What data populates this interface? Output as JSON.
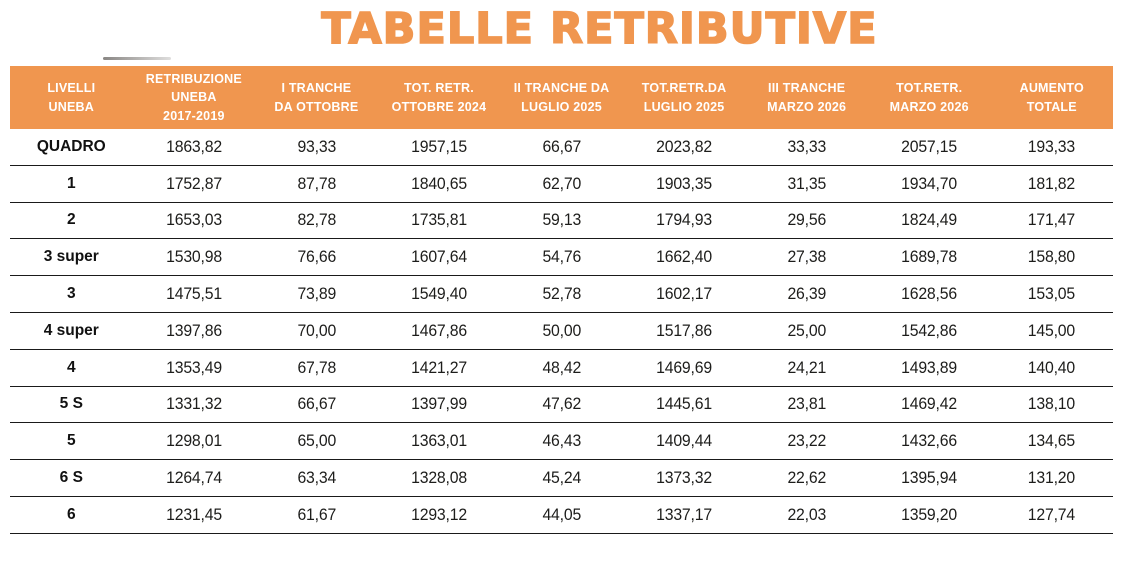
{
  "page": {
    "title": "TABELLE RETRIBUTIVE"
  },
  "theme": {
    "accent_orange": "#F0964F",
    "header_text_color": "#FFFFFF",
    "row_line_color": "#1A1A1A",
    "body_text_color": "#1D1D1B",
    "background": "#FFFFFF"
  },
  "table": {
    "columns": [
      {
        "id": "livelli-uneba",
        "label": "LIVELLI\nUNEBA"
      },
      {
        "id": "retribuzione-uneba-2017-2019",
        "label": "RETRIBUZIONE\nUNEBA\n2017-2019"
      },
      {
        "id": "i-tranche-da-ottobre",
        "label": "I TRANCHE\nDA OTTOBRE"
      },
      {
        "id": "tot-retr-ottobre-2024",
        "label": "TOT. RETR.\nOTTOBRE 2024"
      },
      {
        "id": "ii-tranche-da-luglio-2025",
        "label": "II TRANCHE DA\nLUGLIO 2025"
      },
      {
        "id": "tot-retr-da-luglio-2025",
        "label": "TOT.RETR.DA\nLUGLIO 2025"
      },
      {
        "id": "iii-tranche-marzo-2026",
        "label": "III TRANCHE\nMARZO 2026"
      },
      {
        "id": "tot-retr-marzo-2026",
        "label": "TOT.RETR.\nMARZO 2026"
      },
      {
        "id": "aumento-totale",
        "label": "AUMENTO\nTOTALE"
      }
    ],
    "rows": [
      {
        "level": "QUADRO",
        "values": [
          "1863,82",
          "93,33",
          "1957,15",
          "66,67",
          "2023,82",
          "33,33",
          "2057,15",
          "193,33"
        ]
      },
      {
        "level": "1",
        "values": [
          "1752,87",
          "87,78",
          "1840,65",
          "62,70",
          "1903,35",
          "31,35",
          "1934,70",
          "181,82"
        ]
      },
      {
        "level": "2",
        "values": [
          "1653,03",
          "82,78",
          "1735,81",
          "59,13",
          "1794,93",
          "29,56",
          "1824,49",
          "171,47"
        ]
      },
      {
        "level": "3 super",
        "values": [
          "1530,98",
          "76,66",
          "1607,64",
          "54,76",
          "1662,40",
          "27,38",
          "1689,78",
          "158,80"
        ]
      },
      {
        "level": "3",
        "values": [
          "1475,51",
          "73,89",
          "1549,40",
          "52,78",
          "1602,17",
          "26,39",
          "1628,56",
          "153,05"
        ]
      },
      {
        "level": "4 super",
        "values": [
          "1397,86",
          "70,00",
          "1467,86",
          "50,00",
          "1517,86",
          "25,00",
          "1542,86",
          "145,00"
        ]
      },
      {
        "level": "4",
        "values": [
          "1353,49",
          "67,78",
          "1421,27",
          "48,42",
          "1469,69",
          "24,21",
          "1493,89",
          "140,40"
        ]
      },
      {
        "level": "5 S",
        "values": [
          "1331,32",
          "66,67",
          "1397,99",
          "47,62",
          "1445,61",
          "23,81",
          "1469,42",
          "138,10"
        ]
      },
      {
        "level": "5",
        "values": [
          "1298,01",
          "65,00",
          "1363,01",
          "46,43",
          "1409,44",
          "23,22",
          "1432,66",
          "134,65"
        ]
      },
      {
        "level": "6 S",
        "values": [
          "1264,74",
          "63,34",
          "1328,08",
          "45,24",
          "1373,32",
          "22,62",
          "1395,94",
          "131,20"
        ]
      },
      {
        "level": "6",
        "values": [
          "1231,45",
          "61,67",
          "1293,12",
          "44,05",
          "1337,17",
          "22,03",
          "1359,20",
          "127,74"
        ]
      }
    ]
  }
}
